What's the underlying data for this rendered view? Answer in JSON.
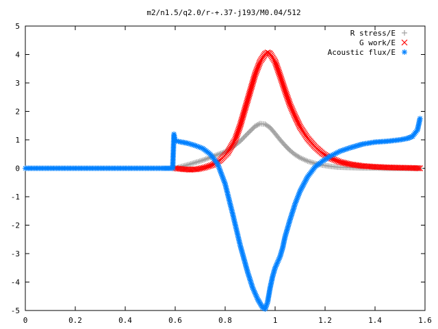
{
  "chart_data": {
    "type": "scatter",
    "title": "m2/n1.5/q2.0/r-+.37-j193/M0.04/512",
    "xlabel": "",
    "ylabel": "",
    "xlim": [
      0,
      1.6
    ],
    "ylim": [
      -5,
      5
    ],
    "xticks": [
      "0",
      "0.2",
      "0.4",
      "0.6",
      "0.8",
      "1",
      "1.2",
      "1.4",
      "1.6"
    ],
    "yticks": [
      "5",
      "4",
      "3",
      "2",
      "1",
      "0",
      "-1",
      "-2",
      "-3",
      "-4",
      "-5"
    ],
    "grid": false,
    "legend_position": "top-right",
    "series": [
      {
        "name": "R stress/E",
        "marker": "+",
        "color": "#a0a0a0",
        "x": [
          0.6,
          0.62,
          0.65,
          0.68,
          0.71,
          0.74,
          0.77,
          0.8,
          0.83,
          0.86,
          0.89,
          0.92,
          0.94,
          0.96,
          0.98,
          1.0,
          1.02,
          1.04,
          1.06,
          1.08,
          1.1,
          1.13,
          1.16,
          1.19,
          1.22,
          1.25,
          1.28,
          1.32,
          1.36,
          1.4,
          1.45,
          1.5,
          1.55,
          1.58
        ],
        "y": [
          0.0,
          0.05,
          0.12,
          0.2,
          0.28,
          0.38,
          0.48,
          0.58,
          0.74,
          0.95,
          1.22,
          1.48,
          1.57,
          1.55,
          1.43,
          1.22,
          1.0,
          0.8,
          0.62,
          0.48,
          0.37,
          0.25,
          0.17,
          0.11,
          0.07,
          0.04,
          0.03,
          0.02,
          0.01,
          0.01,
          0.0,
          0.0,
          0.0,
          0.0
        ]
      },
      {
        "name": "G work/E",
        "marker": "x",
        "color": "#ff0000",
        "x": [
          0.6,
          0.63,
          0.66,
          0.69,
          0.72,
          0.75,
          0.78,
          0.81,
          0.84,
          0.86,
          0.88,
          0.9,
          0.92,
          0.94,
          0.96,
          0.97,
          0.98,
          1.0,
          1.02,
          1.04,
          1.06,
          1.08,
          1.1,
          1.13,
          1.16,
          1.19,
          1.22,
          1.26,
          1.3,
          1.35,
          1.4,
          1.45,
          1.5,
          1.55,
          1.58
        ],
        "y": [
          0.0,
          -0.03,
          -0.05,
          -0.03,
          0.03,
          0.12,
          0.28,
          0.55,
          1.0,
          1.5,
          2.1,
          2.7,
          3.3,
          3.75,
          4.02,
          4.07,
          4.03,
          3.75,
          3.25,
          2.72,
          2.22,
          1.82,
          1.45,
          1.05,
          0.75,
          0.52,
          0.36,
          0.22,
          0.14,
          0.08,
          0.05,
          0.03,
          0.02,
          0.01,
          0.0
        ]
      },
      {
        "name": "Acoustic flux/E",
        "marker": "*",
        "color": "#0080ff",
        "x": [
          0.0,
          0.05,
          0.1,
          0.15,
          0.2,
          0.25,
          0.3,
          0.35,
          0.4,
          0.45,
          0.5,
          0.55,
          0.59,
          0.595,
          0.6,
          0.62,
          0.65,
          0.68,
          0.71,
          0.74,
          0.77,
          0.8,
          0.83,
          0.86,
          0.89,
          0.91,
          0.93,
          0.95,
          0.96,
          0.97,
          0.98,
          0.99,
          1.0,
          1.01,
          1.02,
          1.03,
          1.04,
          1.06,
          1.08,
          1.1,
          1.13,
          1.16,
          1.19,
          1.22,
          1.26,
          1.3,
          1.35,
          1.4,
          1.45,
          1.5,
          1.53,
          1.55,
          1.57,
          1.58
        ],
        "y": [
          0,
          0,
          0,
          0,
          0,
          0,
          0,
          0,
          0,
          0,
          0,
          0,
          0,
          1.2,
          0.97,
          0.93,
          0.88,
          0.8,
          0.7,
          0.5,
          0.15,
          -0.55,
          -1.6,
          -2.7,
          -3.65,
          -4.2,
          -4.6,
          -4.9,
          -4.95,
          -4.7,
          -4.2,
          -3.8,
          -3.5,
          -3.3,
          -3.1,
          -2.8,
          -2.4,
          -1.8,
          -1.25,
          -0.8,
          -0.3,
          0.05,
          0.25,
          0.42,
          0.6,
          0.72,
          0.85,
          0.92,
          0.95,
          1.0,
          1.05,
          1.12,
          1.35,
          1.75
        ]
      }
    ]
  }
}
